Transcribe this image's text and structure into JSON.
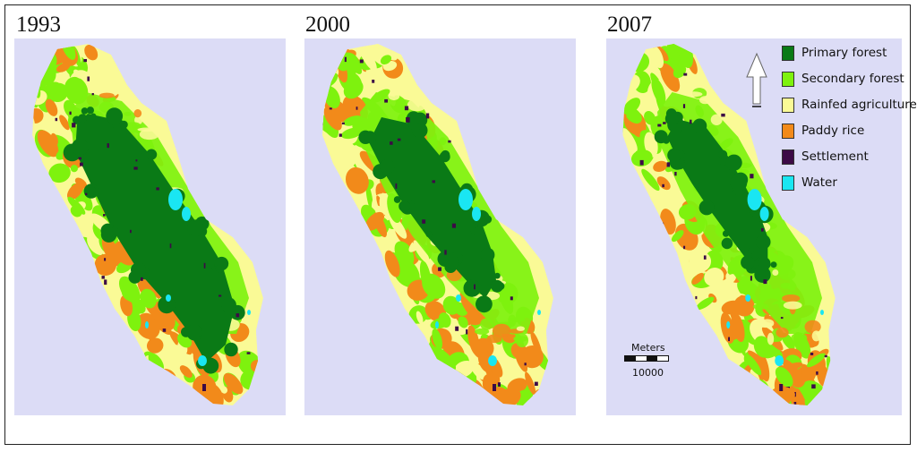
{
  "panels": [
    {
      "year": "1993",
      "variant": 0
    },
    {
      "year": "2000",
      "variant": 1
    },
    {
      "year": "2007",
      "variant": 2
    }
  ],
  "legend": [
    {
      "label": "Primary forest",
      "color": "#0a7a16"
    },
    {
      "label": "Secondary forest",
      "color": "#7ef20e"
    },
    {
      "label": "Rainfed agriculture",
      "color": "#fafa96"
    },
    {
      "label": "Paddy rice",
      "color": "#f28a1a"
    },
    {
      "label": "Settlement",
      "color": "#3c0a46"
    },
    {
      "label": "Water",
      "color": "#1ae6f2"
    }
  ],
  "north_arrow": {
    "label": "N"
  },
  "scale_bar": {
    "unit_label": "Meters",
    "value_label": "10000"
  },
  "colors": {
    "background": "#dcdcf6"
  }
}
